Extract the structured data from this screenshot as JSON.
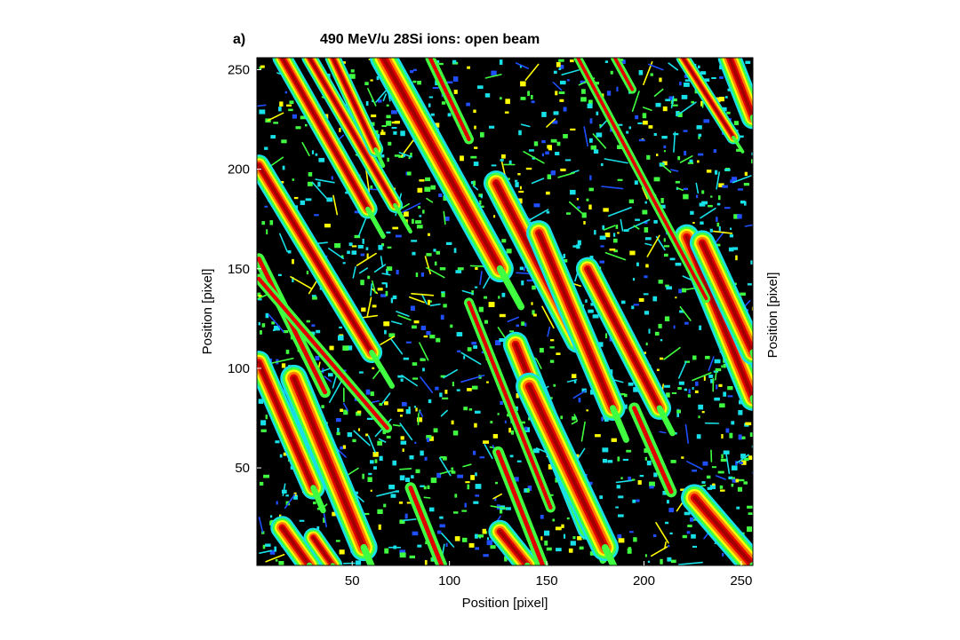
{
  "figure": {
    "panel_label": "a)"
  },
  "chart_data": {
    "type": "heatmap",
    "title": "490 MeV/u 28Si ions: open beam",
    "xlabel": "Position [pixel]",
    "ylabel": "Position [pixel]",
    "ylabel_right": "Position [pixel]",
    "xlim": [
      1,
      256
    ],
    "ylim": [
      1,
      256
    ],
    "x_ticks": [
      50,
      100,
      150,
      200,
      250
    ],
    "y_ticks": [
      50,
      100,
      150,
      200,
      250
    ],
    "grid": false,
    "colormap": [
      "#000000",
      "#1f4fff",
      "#18e0e8",
      "#40ff40",
      "#ffff00",
      "#ff8000",
      "#e00000",
      "#a00000"
    ],
    "tracks": [
      {
        "x0": 2,
        "y0": 202,
        "x1": 60,
        "y1": 108,
        "width": 5.5
      },
      {
        "x0": 14,
        "y0": 256,
        "x1": 58,
        "y1": 180,
        "width": 5
      },
      {
        "x0": 28,
        "y0": 256,
        "x1": 72,
        "y1": 182,
        "width": 4
      },
      {
        "x0": 66,
        "y0": 256,
        "x1": 126,
        "y1": 150,
        "width": 7
      },
      {
        "x0": 40,
        "y0": 256,
        "x1": 62,
        "y1": 210,
        "width": 4
      },
      {
        "x0": 2,
        "y0": 103,
        "x1": 30,
        "y1": 40,
        "width": 6
      },
      {
        "x0": 20,
        "y0": 95,
        "x1": 56,
        "y1": 10,
        "width": 7
      },
      {
        "x0": 124,
        "y0": 193,
        "x1": 166,
        "y1": 114,
        "width": 6.5
      },
      {
        "x0": 146,
        "y0": 168,
        "x1": 184,
        "y1": 80,
        "width": 6.5
      },
      {
        "x0": 171,
        "y0": 150,
        "x1": 208,
        "y1": 80,
        "width": 6
      },
      {
        "x0": 134,
        "y0": 112,
        "x1": 172,
        "y1": 20,
        "width": 6.5
      },
      {
        "x0": 141,
        "y0": 91,
        "x1": 180,
        "y1": 10,
        "width": 7
      },
      {
        "x0": 222,
        "y0": 166,
        "x1": 256,
        "y1": 85,
        "width": 6.5
      },
      {
        "x0": 230,
        "y0": 163,
        "x1": 256,
        "y1": 108,
        "width": 6.5
      },
      {
        "x0": 226,
        "y0": 35,
        "x1": 256,
        "y1": 1,
        "width": 7
      },
      {
        "x0": 14,
        "y0": 20,
        "x1": 28,
        "y1": 1,
        "width": 6
      },
      {
        "x0": 30,
        "y0": 15,
        "x1": 40,
        "y1": 1,
        "width": 5
      },
      {
        "x0": 126,
        "y0": 18,
        "x1": 140,
        "y1": 1,
        "width": 6
      },
      {
        "x0": 244,
        "y0": 256,
        "x1": 256,
        "y1": 226,
        "width": 6
      },
      {
        "x0": 220,
        "y0": 256,
        "x1": 246,
        "y1": 216,
        "width": 3.5
      }
    ],
    "thin_tracks": [
      {
        "x0": 2,
        "y0": 155,
        "x1": 36,
        "y1": 88,
        "width": 1.6
      },
      {
        "x0": 2,
        "y0": 145,
        "x1": 68,
        "y1": 70,
        "width": 1.4
      },
      {
        "x0": 80,
        "y0": 40,
        "x1": 96,
        "y1": 1,
        "width": 1.6
      },
      {
        "x0": 125,
        "y0": 58,
        "x1": 148,
        "y1": 1,
        "width": 1.6
      },
      {
        "x0": 110,
        "y0": 133,
        "x1": 152,
        "y1": 30,
        "width": 1.4
      },
      {
        "x0": 90,
        "y0": 256,
        "x1": 110,
        "y1": 215,
        "width": 1.4
      },
      {
        "x0": 166,
        "y0": 256,
        "x1": 232,
        "y1": 135,
        "width": 1.2
      },
      {
        "x0": 185,
        "y0": 256,
        "x1": 194,
        "y1": 240,
        "width": 1.2
      },
      {
        "x0": 195,
        "y0": 80,
        "x1": 214,
        "y1": 38,
        "width": 1.6
      }
    ]
  }
}
